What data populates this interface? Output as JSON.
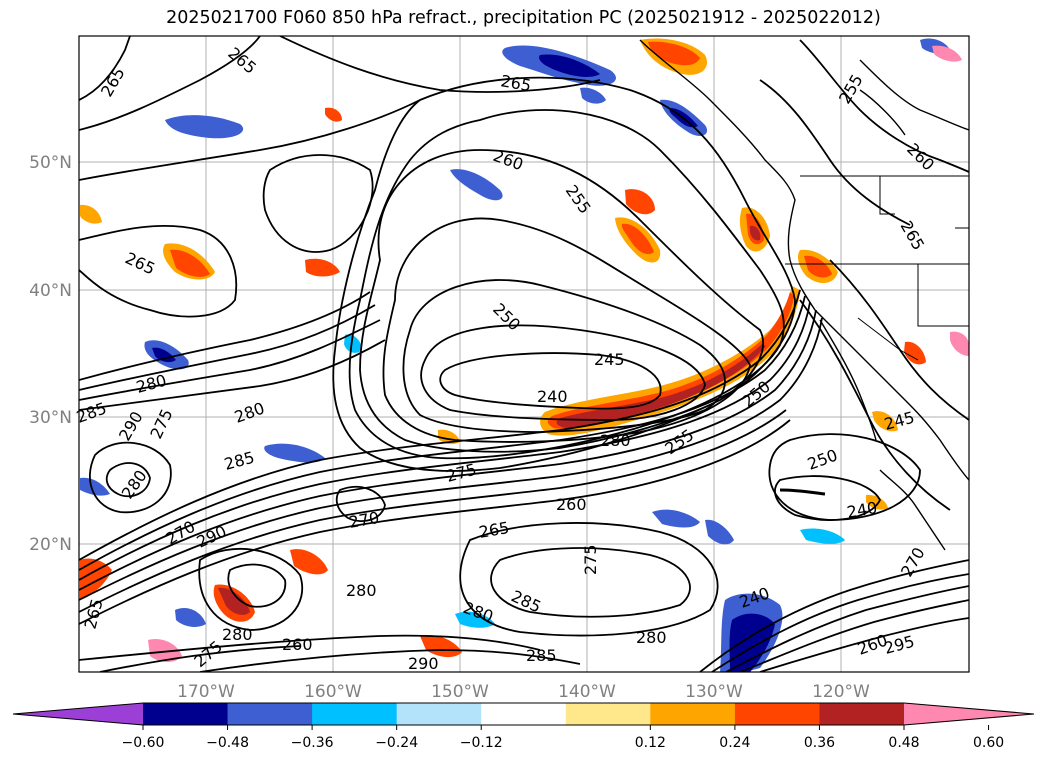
{
  "title": "2025021700 F060 850 hPa refract., precipitation PC (2025021912 - 2025022012)",
  "lat_labels": [
    "50°N",
    "40°N",
    "30°N",
    "20°N"
  ],
  "lon_labels": [
    "170°W",
    "160°W",
    "150°W",
    "140°W",
    "130°W",
    "120°W"
  ],
  "contour_labels": [
    {
      "text": "265"
    },
    {
      "text": "265"
    },
    {
      "text": "265"
    },
    {
      "text": "260"
    },
    {
      "text": "255"
    },
    {
      "text": "255"
    },
    {
      "text": "260"
    },
    {
      "text": "265"
    },
    {
      "text": "265"
    },
    {
      "text": "250"
    },
    {
      "text": "245"
    },
    {
      "text": "240"
    },
    {
      "text": "280"
    },
    {
      "text": "285"
    },
    {
      "text": "280"
    },
    {
      "text": "290"
    },
    {
      "text": "275"
    },
    {
      "text": "285"
    },
    {
      "text": "280"
    },
    {
      "text": "270"
    },
    {
      "text": "290"
    },
    {
      "text": "275"
    },
    {
      "text": "265"
    },
    {
      "text": "260"
    },
    {
      "text": "275"
    },
    {
      "text": "255"
    },
    {
      "text": "250"
    },
    {
      "text": "245"
    },
    {
      "text": "250"
    },
    {
      "text": "240"
    },
    {
      "text": "280"
    },
    {
      "text": "285"
    },
    {
      "text": "280"
    },
    {
      "text": "280"
    },
    {
      "text": "260"
    },
    {
      "text": "270"
    },
    {
      "text": "290"
    },
    {
      "text": "285"
    },
    {
      "text": "240"
    },
    {
      "text": "295"
    },
    {
      "text": "280"
    },
    {
      "text": "265"
    },
    {
      "text": "275"
    },
    {
      "text": "270"
    },
    {
      "text": "260"
    },
    {
      "text": "280"
    }
  ],
  "colorbar": {
    "colors": [
      "#9b3fd6",
      "#00008e",
      "#3d5fd1",
      "#00c0ff",
      "#b3e3fa",
      "#ffffff",
      "#ffe88c",
      "#ffa500",
      "#ff4500",
      "#b22222",
      "#ff88b0"
    ],
    "tick_labels": [
      "−0.60",
      "−0.48",
      "−0.36",
      "−0.24",
      "−0.12",
      "0.12",
      "0.24",
      "0.36",
      "0.48",
      "0.60"
    ]
  }
}
